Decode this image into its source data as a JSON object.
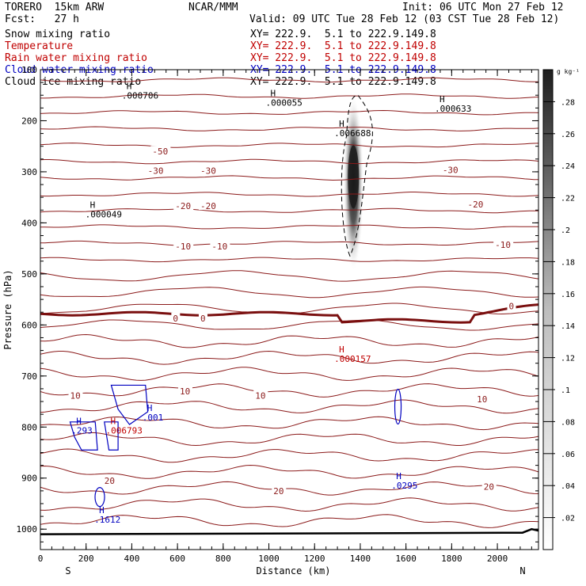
{
  "header": {
    "model": "TORERO  15km ARW",
    "org": "NCAR/MMM",
    "init": "Init: 06 UTC Mon 27 Feb 12",
    "fcst": "Fcst:   27 h",
    "valid": "Valid: 09 UTC Tue 28 Feb 12 (03 CST Tue 28 Feb 12)"
  },
  "fields": [
    {
      "label": "Snow mixing ratio",
      "xy": "",
      "color": "#000000"
    },
    {
      "label": "Temperature",
      "xy": "XY= 222.9.  5.1 to 222.9.149.8",
      "color": "#c00000"
    },
    {
      "label": "Rain water mixing ratio",
      "xy": "XY= 222.9.  5.1 to 222.9.149.8",
      "color": "#c00000"
    },
    {
      "label": "Cloud water mixing ratio",
      "xy": "XY= 222.9.  5.1 to 222.9.149.8",
      "color": "#0000c0"
    },
    {
      "label": "Cloud ice mixing ratio",
      "xy": "XY= 222.9.  5.1 to 222.9.149.8",
      "color": "#000000"
    }
  ],
  "snow_xy": "XY= 222.9.  5.1 to 222.9.149.8",
  "chart_data": {
    "type": "cross-section",
    "xlabel": "Distance (km)",
    "ylabel": "Pressure (hPa)",
    "xlim": [
      0,
      2180
    ],
    "ylim": [
      1040,
      100
    ],
    "x_ticks": [
      "0",
      "200",
      "400",
      "600",
      "800",
      "1000",
      "1200",
      "1400",
      "1600",
      "1800",
      "2000"
    ],
    "x_tick_values": [
      0,
      200,
      400,
      600,
      800,
      1000,
      1200,
      1400,
      1600,
      1800,
      2000
    ],
    "y_ticks": [
      "100",
      "200",
      "300",
      "400",
      "500",
      "600",
      "700",
      "800",
      "900",
      "1000"
    ],
    "y_tick_values": [
      100,
      200,
      300,
      400,
      500,
      600,
      700,
      800,
      900,
      1000
    ],
    "left_end": "S",
    "right_end": "N",
    "colorbar": {
      "units": "g kg⁻¹",
      "labels": [
        ".02",
        ".04",
        ".06",
        ".08",
        ".1",
        ".12",
        ".14",
        ".16",
        ".18",
        ".2",
        ".22",
        ".24",
        ".26",
        ".28"
      ],
      "values": [
        0.02,
        0.04,
        0.06,
        0.08,
        0.1,
        0.12,
        0.14,
        0.16,
        0.18,
        0.2,
        0.22,
        0.24,
        0.26,
        0.28
      ],
      "max": 0.3
    },
    "isotherm_labels": [
      {
        "text": "-50",
        "x": 490,
        "p": 260
      },
      {
        "text": "-30",
        "x": 470,
        "p": 298
      },
      {
        "text": "-30",
        "x": 700,
        "p": 298
      },
      {
        "text": "-30",
        "x": 1760,
        "p": 296
      },
      {
        "text": "-20",
        "x": 590,
        "p": 367
      },
      {
        "text": "-20",
        "x": 700,
        "p": 367
      },
      {
        "text": "-20",
        "x": 1870,
        "p": 364
      },
      {
        "text": "-10",
        "x": 590,
        "p": 446
      },
      {
        "text": "-10",
        "x": 750,
        "p": 446
      },
      {
        "text": "-10",
        "x": 1990,
        "p": 443
      },
      {
        "text": "0",
        "x": 580,
        "p": 587
      },
      {
        "text": "0",
        "x": 700,
        "p": 587
      },
      {
        "text": "0",
        "x": 2050,
        "p": 563
      },
      {
        "text": "10",
        "x": 130,
        "p": 738
      },
      {
        "text": "10",
        "x": 610,
        "p": 730
      },
      {
        "text": "10",
        "x": 940,
        "p": 738
      },
      {
        "text": "10",
        "x": 1910,
        "p": 745
      },
      {
        "text": "20",
        "x": 280,
        "p": 905
      },
      {
        "text": "20",
        "x": 1020,
        "p": 925
      },
      {
        "text": "20",
        "x": 1940,
        "p": 917
      }
    ],
    "maxima": [
      {
        "field": "snow",
        "value": ".000706",
        "x": 370,
        "p": 144
      },
      {
        "field": "snow",
        "value": ".000055",
        "x": 1000,
        "p": 158
      },
      {
        "field": "snow",
        "value": ".006688",
        "x": 1300,
        "p": 218
      },
      {
        "field": "snow",
        "value": ".000633",
        "x": 1740,
        "p": 170
      },
      {
        "field": "snow",
        "value": ".000049",
        "x": 210,
        "p": 377
      },
      {
        "field": "rain",
        "value": ".000157",
        "x": 1300,
        "p": 660
      },
      {
        "field": "rain",
        "value": ".006793",
        "x": 300,
        "p": 800
      },
      {
        "field": "cloud_water",
        "value": ".001",
        "x": 460,
        "p": 775
      },
      {
        "field": "cloud_water",
        "value": ".293",
        "x": 150,
        "p": 800
      },
      {
        "field": "cloud_water",
        "value": ".0295",
        "x": 1550,
        "p": 908
      },
      {
        "field": "cloud_water",
        "value": ".1612",
        "x": 250,
        "p": 975
      }
    ],
    "snow_max_region": {
      "x_center": 1370,
      "p_top": 150,
      "p_bottom": 470,
      "peak_value": 0.28
    }
  }
}
